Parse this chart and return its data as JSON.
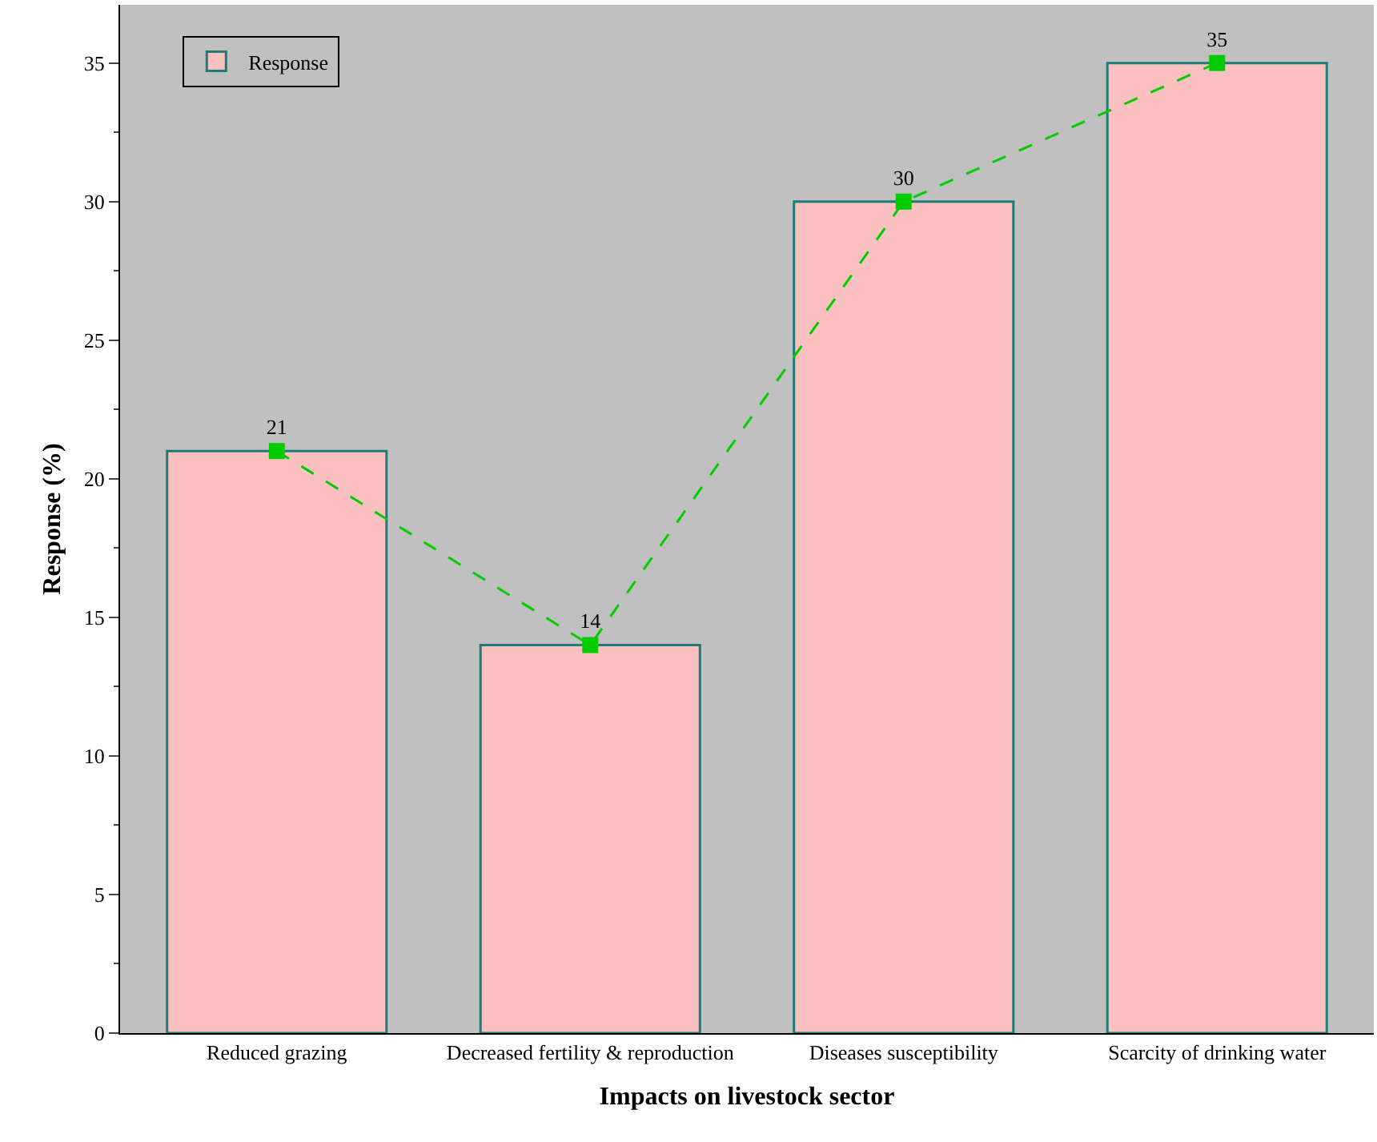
{
  "chart_data": {
    "type": "bar",
    "xlabel": "Impacts on livestock sector",
    "ylabel": "Response (%)",
    "categories": [
      "Reduced grazing",
      "Decreased fertility & reproduction",
      "Diseases susceptibility",
      "Scarcity of drinking water"
    ],
    "series": [
      {
        "name": "Response",
        "color": "#fbc0c0",
        "values": [
          21,
          14,
          30,
          35
        ]
      },
      {
        "type": "line",
        "color": "#00cc00",
        "values": [
          21,
          14,
          30,
          35
        ],
        "value_labels": [
          "21",
          "14",
          "30",
          "35"
        ]
      }
    ],
    "ylim": [
      0,
      37.1
    ],
    "yticks": [
      0,
      5,
      10,
      15,
      20,
      25,
      30,
      35
    ],
    "grid": false,
    "legend": "top left",
    "marker": "square",
    "line_style": "dashed"
  }
}
